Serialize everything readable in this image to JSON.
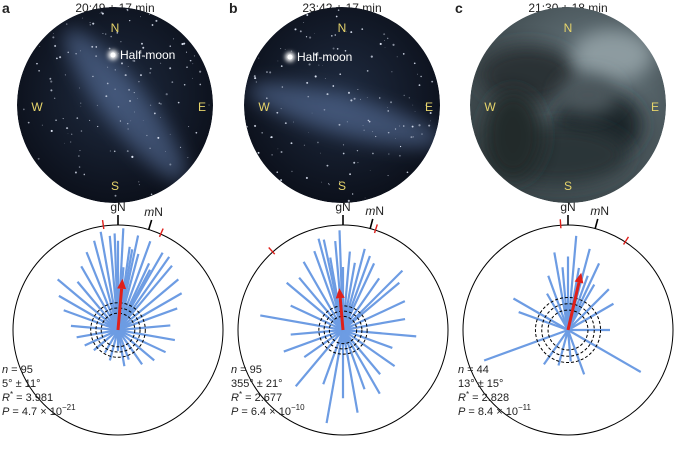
{
  "panels": [
    {
      "letter": "a",
      "time": "20:49 ± 17 min",
      "moon": "Half-moon",
      "compass": {
        "n": "N",
        "e": "E",
        "s": "S",
        "w": "W"
      },
      "gn": "gN",
      "mn_prefix": "m",
      "mn_suffix": "N",
      "mn_angle": 17,
      "red_ticks": [
        352,
        24
      ],
      "mean_angle": 5,
      "mean_length": 0.49,
      "dashed_radii": [
        0.16,
        0.21,
        0.26
      ],
      "angles": [
        350,
        355,
        0,
        3,
        8,
        12,
        15,
        20,
        25,
        30,
        338,
        345,
        330,
        320,
        310,
        300,
        290,
        275,
        260,
        245,
        230,
        210,
        195,
        180,
        170,
        160,
        145,
        130,
        115,
        100,
        85,
        70,
        60,
        50,
        40,
        35,
        28,
        5,
        10,
        358
      ],
      "lengths": [
        0.95,
        0.9,
        0.85,
        0.97,
        0.8,
        0.92,
        0.75,
        0.9,
        0.7,
        0.85,
        0.8,
        0.88,
        0.7,
        0.6,
        0.75,
        0.65,
        0.55,
        0.45,
        0.4,
        0.35,
        0.3,
        0.25,
        0.3,
        0.2,
        0.35,
        0.3,
        0.4,
        0.45,
        0.5,
        0.55,
        0.5,
        0.6,
        0.7,
        0.75,
        0.8,
        0.85,
        0.65,
        0.6,
        0.78,
        0.92
      ],
      "stats": [
        {
          "var": "n",
          "text": " = 95"
        },
        {
          "text": "5° ± 11°"
        },
        {
          "var": "R",
          "sup": "*",
          "text": " = 3.981"
        },
        {
          "var": "P",
          "text": " = 4.7 × 10",
          "exp": "−21"
        }
      ]
    },
    {
      "letter": "b",
      "time": "23:42 ± 17 min",
      "moon": "Half-moon",
      "compass": {
        "n": "N",
        "e": "E",
        "s": "S",
        "w": "W"
      },
      "gn": "gN",
      "mn_prefix": "m",
      "mn_suffix": "N",
      "mn_angle": 15,
      "red_ticks": [
        318,
        18
      ],
      "mean_angle": 355,
      "mean_length": 0.4,
      "dashed_radii": [
        0.13,
        0.18,
        0.23
      ],
      "angles": [
        340,
        345,
        350,
        355,
        0,
        5,
        10,
        15,
        25,
        35,
        330,
        320,
        310,
        295,
        280,
        265,
        250,
        235,
        220,
        200,
        190,
        180,
        170,
        160,
        150,
        140,
        125,
        110,
        95,
        80,
        65,
        50,
        45,
        20,
        358,
        348
      ],
      "lengths": [
        0.8,
        0.9,
        0.7,
        0.85,
        0.6,
        0.75,
        0.65,
        0.8,
        0.7,
        0.6,
        0.75,
        0.65,
        0.7,
        0.55,
        0.8,
        0.5,
        0.6,
        0.45,
        0.7,
        0.55,
        0.9,
        0.65,
        0.8,
        0.6,
        0.7,
        0.55,
        0.6,
        0.5,
        0.7,
        0.6,
        0.65,
        0.7,
        0.8,
        0.75,
        0.95,
        0.88
      ],
      "stats": [
        {
          "var": "n",
          "text": " = 95"
        },
        {
          "text": "355° ± 21°"
        },
        {
          "var": "R",
          "sup": "*",
          "text": " = 2.677"
        },
        {
          "var": "P",
          "text": " = 6.4 × 10",
          "exp": "−10"
        }
      ]
    },
    {
      "letter": "c",
      "time": "21:30 ± 18 min",
      "compass": {
        "n": "N",
        "e": "E",
        "s": "S",
        "w": "W"
      },
      "gn": "gN",
      "mn_prefix": "m",
      "mn_suffix": "N",
      "mn_angle": 15,
      "red_ticks": [
        356,
        33
      ],
      "mean_angle": 13,
      "mean_length": 0.56,
      "dashed_radii": [
        0.19,
        0.25,
        0.31
      ],
      "angles": [
        0,
        5,
        10,
        15,
        20,
        25,
        30,
        355,
        350,
        340,
        330,
        300,
        290,
        250,
        215,
        195,
        175,
        160,
        120,
        90,
        60,
        45
      ],
      "lengths": [
        0.7,
        0.9,
        0.6,
        0.8,
        0.55,
        0.7,
        0.5,
        0.6,
        0.75,
        0.55,
        0.4,
        0.6,
        0.5,
        0.85,
        0.4,
        0.35,
        0.3,
        0.45,
        0.8,
        0.4,
        0.5,
        0.55
      ],
      "stats": [
        {
          "var": "n",
          "text": " = 44"
        },
        {
          "text": "13° ± 15°"
        },
        {
          "var": "R",
          "sup": "*",
          "text": " = 2.828"
        },
        {
          "var": "P",
          "text": " = 8.4 × 10",
          "exp": "−11"
        }
      ]
    }
  ]
}
